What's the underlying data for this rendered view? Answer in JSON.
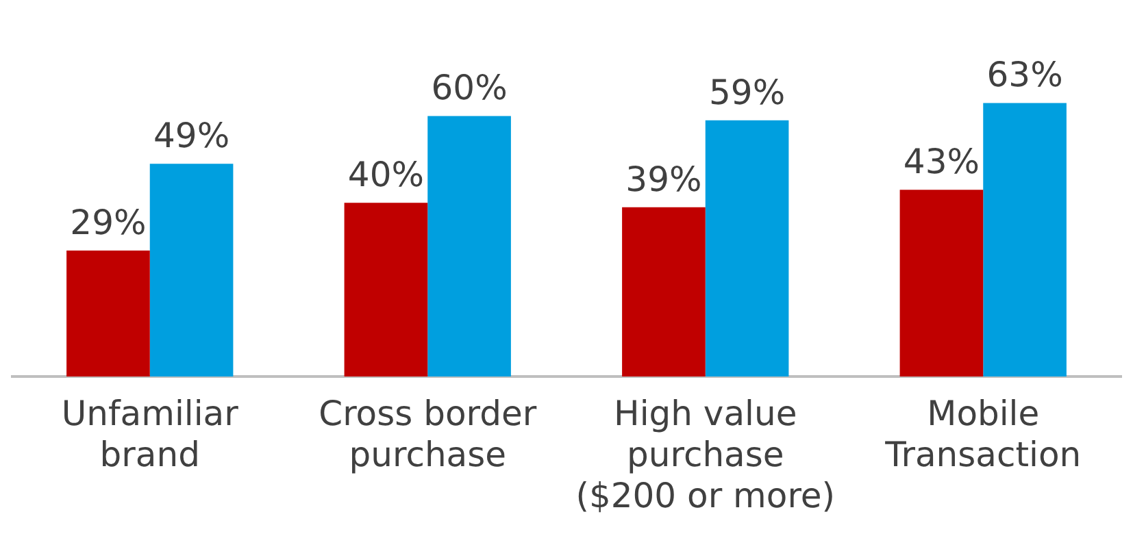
{
  "chart_data": {
    "type": "bar",
    "categories": [
      "Unfamiliar brand",
      "Cross border purchase",
      "High value purchase ($200 or more)",
      "Mobile Transaction"
    ],
    "series": [
      {
        "color": "#c00000",
        "values": [
          29,
          40,
          39,
          43
        ],
        "value_labels": [
          "29%",
          "40%",
          "39%",
          "43%"
        ]
      },
      {
        "color": "#009fdf",
        "values": [
          49,
          60,
          59,
          63
        ],
        "value_labels": [
          "49%",
          "60%",
          "59%",
          "63%"
        ]
      }
    ],
    "grid": false,
    "legend": false,
    "tick_labels": "x"
  }
}
